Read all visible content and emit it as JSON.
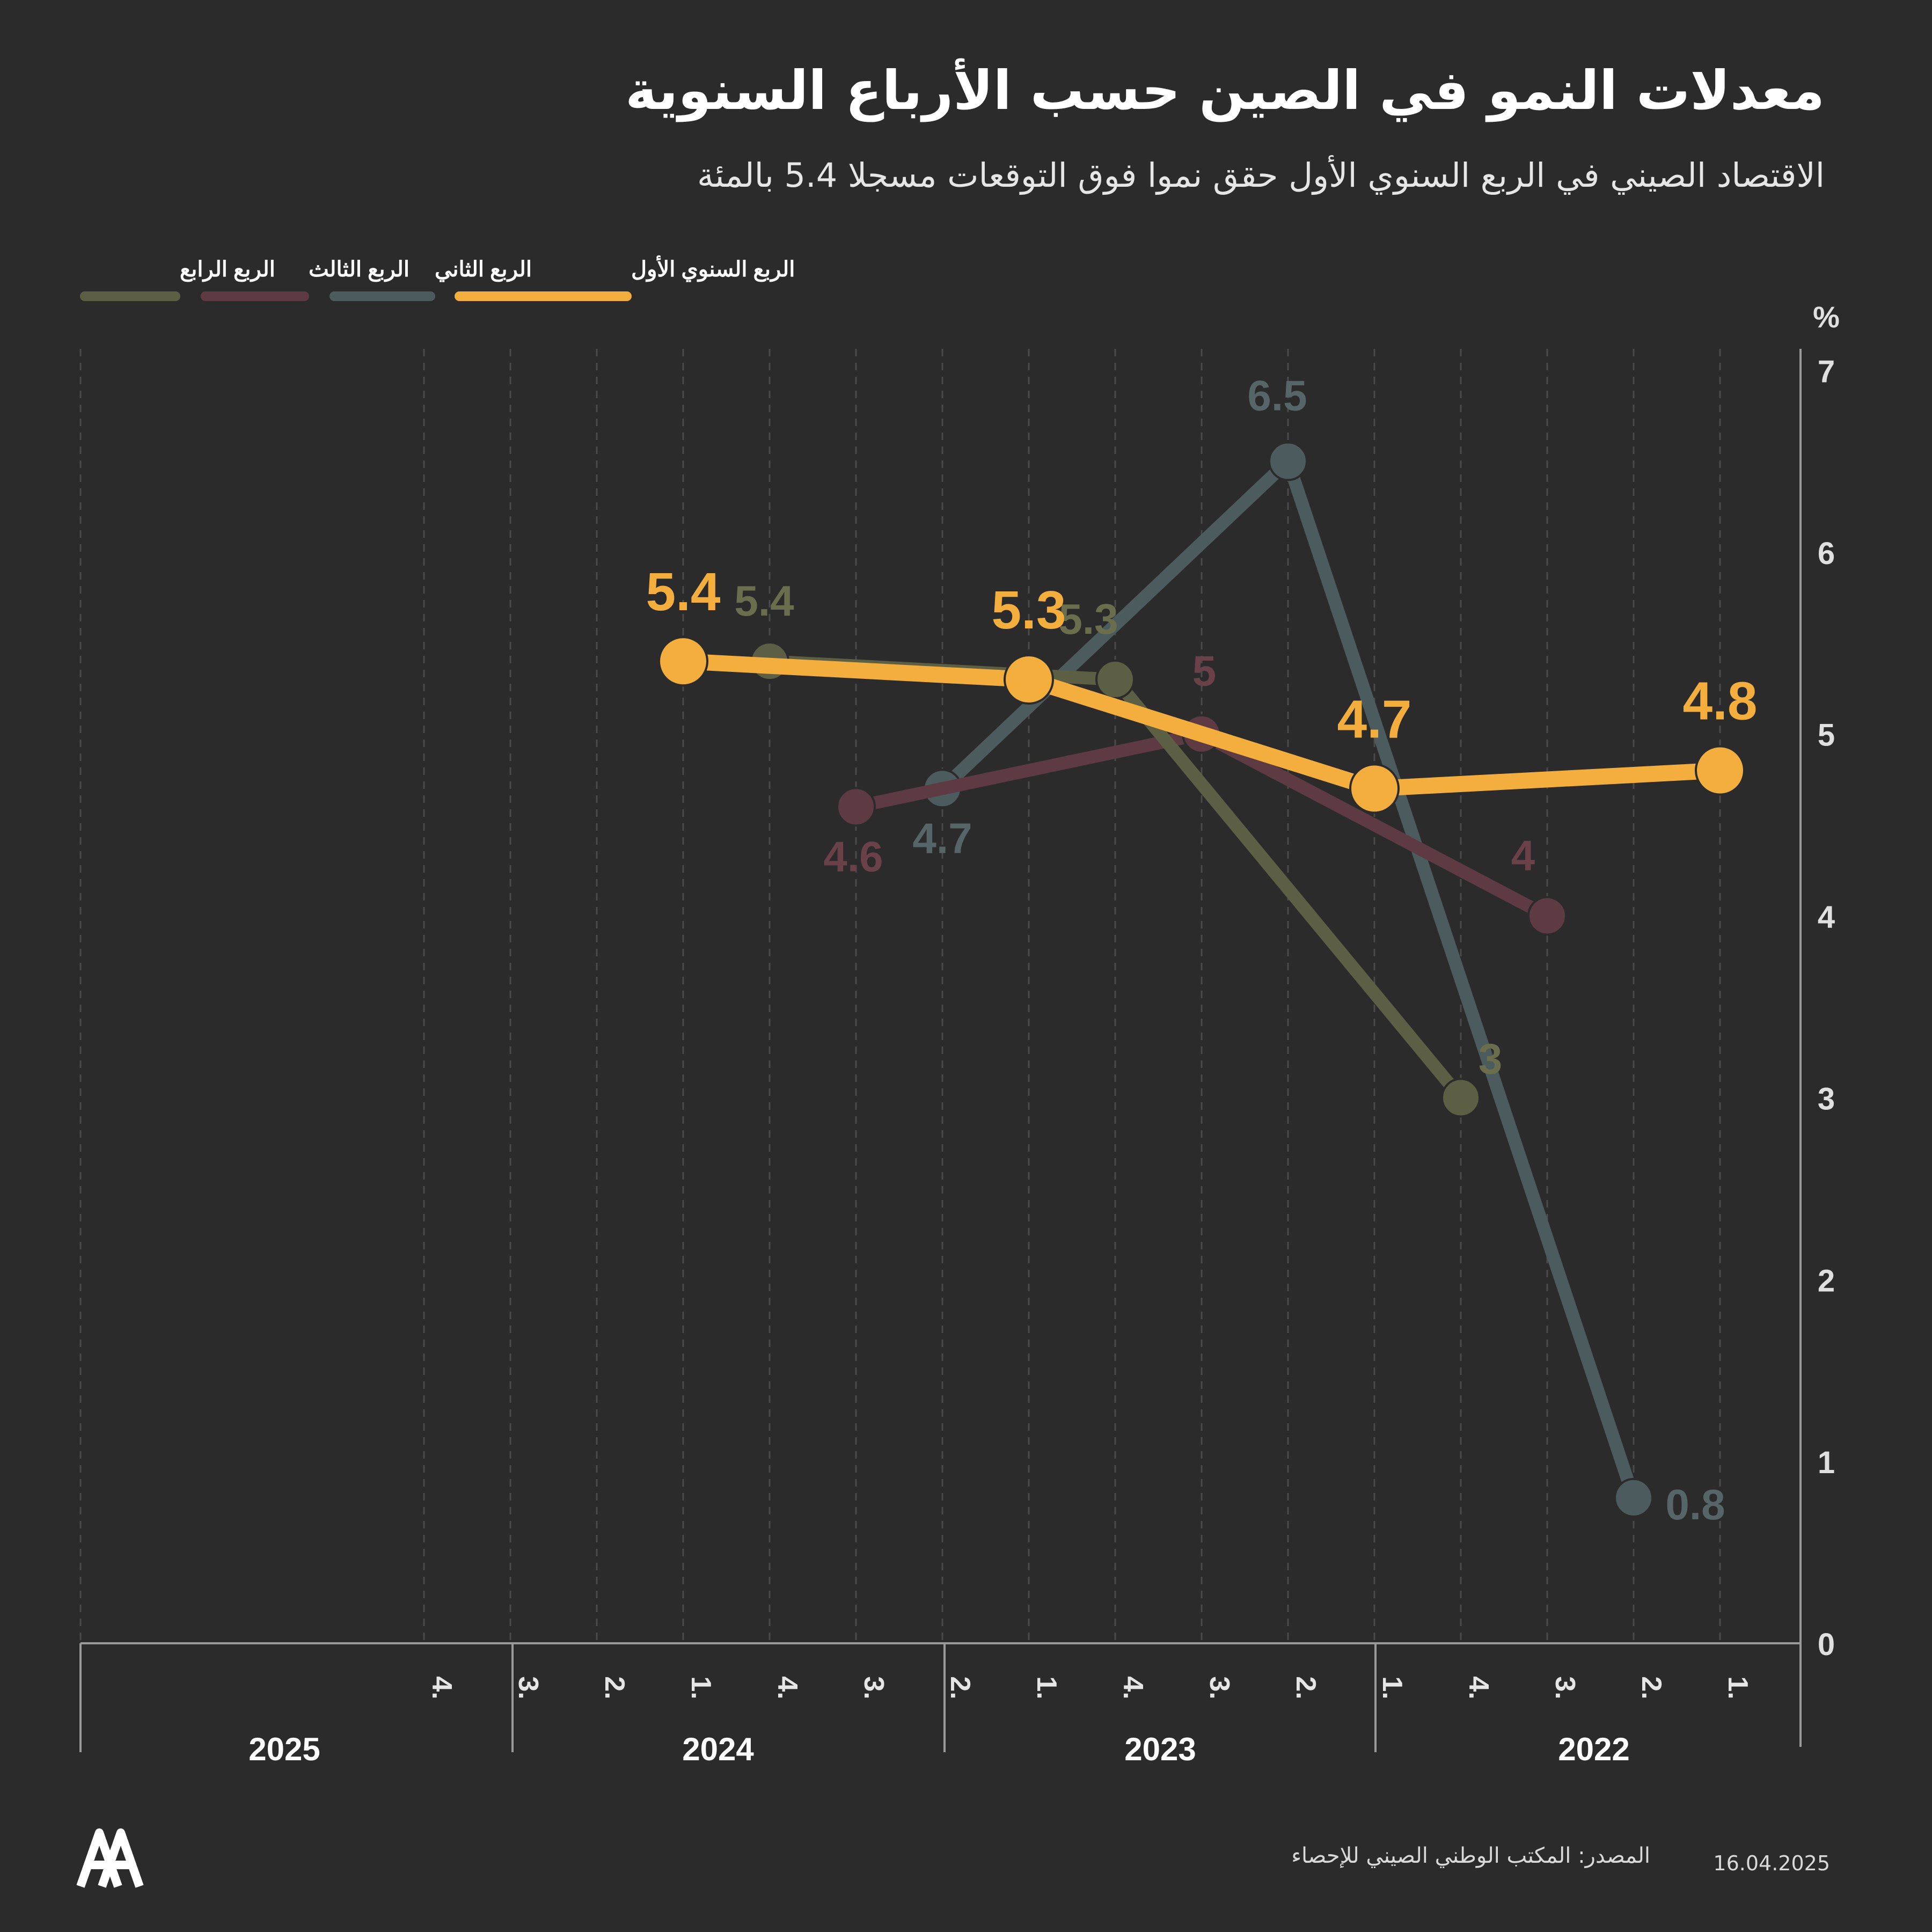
{
  "title": "معدلات النمو في الصين حسب الأرباع السنوية",
  "subtitle": "الاقتصاد الصيني في الربع السنوي الأول حقق نموا فوق التوقعات مسجلا 5.4 بالمئة",
  "footer": {
    "source": "المصدر: المكتب الوطني الصيني للإحصاء",
    "date": "16.04.2025"
  },
  "logo": {
    "icon": "aa-logo-icon"
  },
  "colors": {
    "background": "#2b2b2b",
    "grid": "#4a4a4a",
    "axis": "#9a9a9a",
    "q1": "#f4ae3d",
    "q2": "#4c5b5e",
    "q3": "#5e3a42",
    "q4": "#5d5f44"
  },
  "chart_data": {
    "type": "line",
    "ylabel": "%",
    "ylim": [
      0,
      7
    ],
    "yticks": [
      0,
      1,
      2,
      3,
      4,
      5,
      6,
      7
    ],
    "x_direction": "right-to-left",
    "years": [
      "2022",
      "2023",
      "2024",
      "2025"
    ],
    "quarter_labels": [
      "1.",
      "2.",
      "3.",
      "4."
    ],
    "grid": "vertical dashed",
    "legend_position": "top-left",
    "series": [
      {
        "name": "الربع السنوي الأول",
        "color": "#f4ae3d",
        "label_color": "#f4ae3d",
        "emphasis": true,
        "points": [
          {
            "year": "2022",
            "quarter": 1,
            "value": 4.8,
            "label": "4.8"
          },
          {
            "year": "2023",
            "quarter": 1,
            "value": 4.7,
            "label": "4.7"
          },
          {
            "year": "2024",
            "quarter": 1,
            "value": 5.3,
            "label": "5.3"
          },
          {
            "year": "2025",
            "quarter": 1,
            "value": 5.4,
            "label": "5.4"
          }
        ]
      },
      {
        "name": "الربع الثاني",
        "color": "#4c5b5e",
        "label_color": "#556568",
        "emphasis": false,
        "points": [
          {
            "year": "2022",
            "quarter": 2,
            "value": 0.8,
            "label": "0.8"
          },
          {
            "year": "2023",
            "quarter": 2,
            "value": 6.5,
            "label": "6.5"
          },
          {
            "year": "2024",
            "quarter": 2,
            "value": 4.7,
            "label": "4.7"
          }
        ]
      },
      {
        "name": "الربع الثالث",
        "color": "#5e3a42",
        "label_color": "#6a4049",
        "emphasis": false,
        "points": [
          {
            "year": "2022",
            "quarter": 3,
            "value": 4.0,
            "label": "4"
          },
          {
            "year": "2023",
            "quarter": 3,
            "value": 5.0,
            "label": "5"
          },
          {
            "year": "2024",
            "quarter": 3,
            "value": 4.6,
            "label": "4.6"
          }
        ]
      },
      {
        "name": "الربع الرابع",
        "color": "#5d5f44",
        "label_color": "#6b6e4c",
        "emphasis": false,
        "points": [
          {
            "year": "2022",
            "quarter": 4,
            "value": 3.0,
            "label": "3"
          },
          {
            "year": "2023",
            "quarter": 4,
            "value": 5.3,
            "label": "5.3"
          },
          {
            "year": "2024",
            "quarter": 4,
            "value": 5.4,
            "label": "5.4"
          }
        ]
      }
    ]
  }
}
